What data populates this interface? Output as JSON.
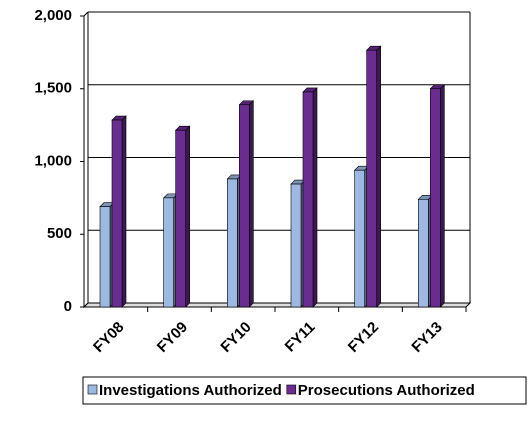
{
  "chart_data": {
    "type": "bar",
    "categories": [
      "FY08",
      "FY09",
      "FY10",
      "FY11",
      "FY12",
      "FY13"
    ],
    "series": [
      {
        "name": "Investigations Authorized",
        "color": "#9db9e1",
        "values": [
          690,
          750,
          880,
          845,
          940,
          740
        ]
      },
      {
        "name": "Prosecutions Authorized",
        "color": "#6b2c91",
        "values": [
          1285,
          1215,
          1390,
          1478,
          1765,
          1500
        ]
      }
    ],
    "ylim": [
      0,
      2000
    ],
    "yticks": [
      0,
      500,
      {
        "value": 1000,
        "label": "1,000"
      },
      {
        "value": 1500,
        "label": "1,500"
      },
      {
        "value": 2000,
        "label": "2,000"
      }
    ],
    "grid": true,
    "legend": "bottom"
  }
}
